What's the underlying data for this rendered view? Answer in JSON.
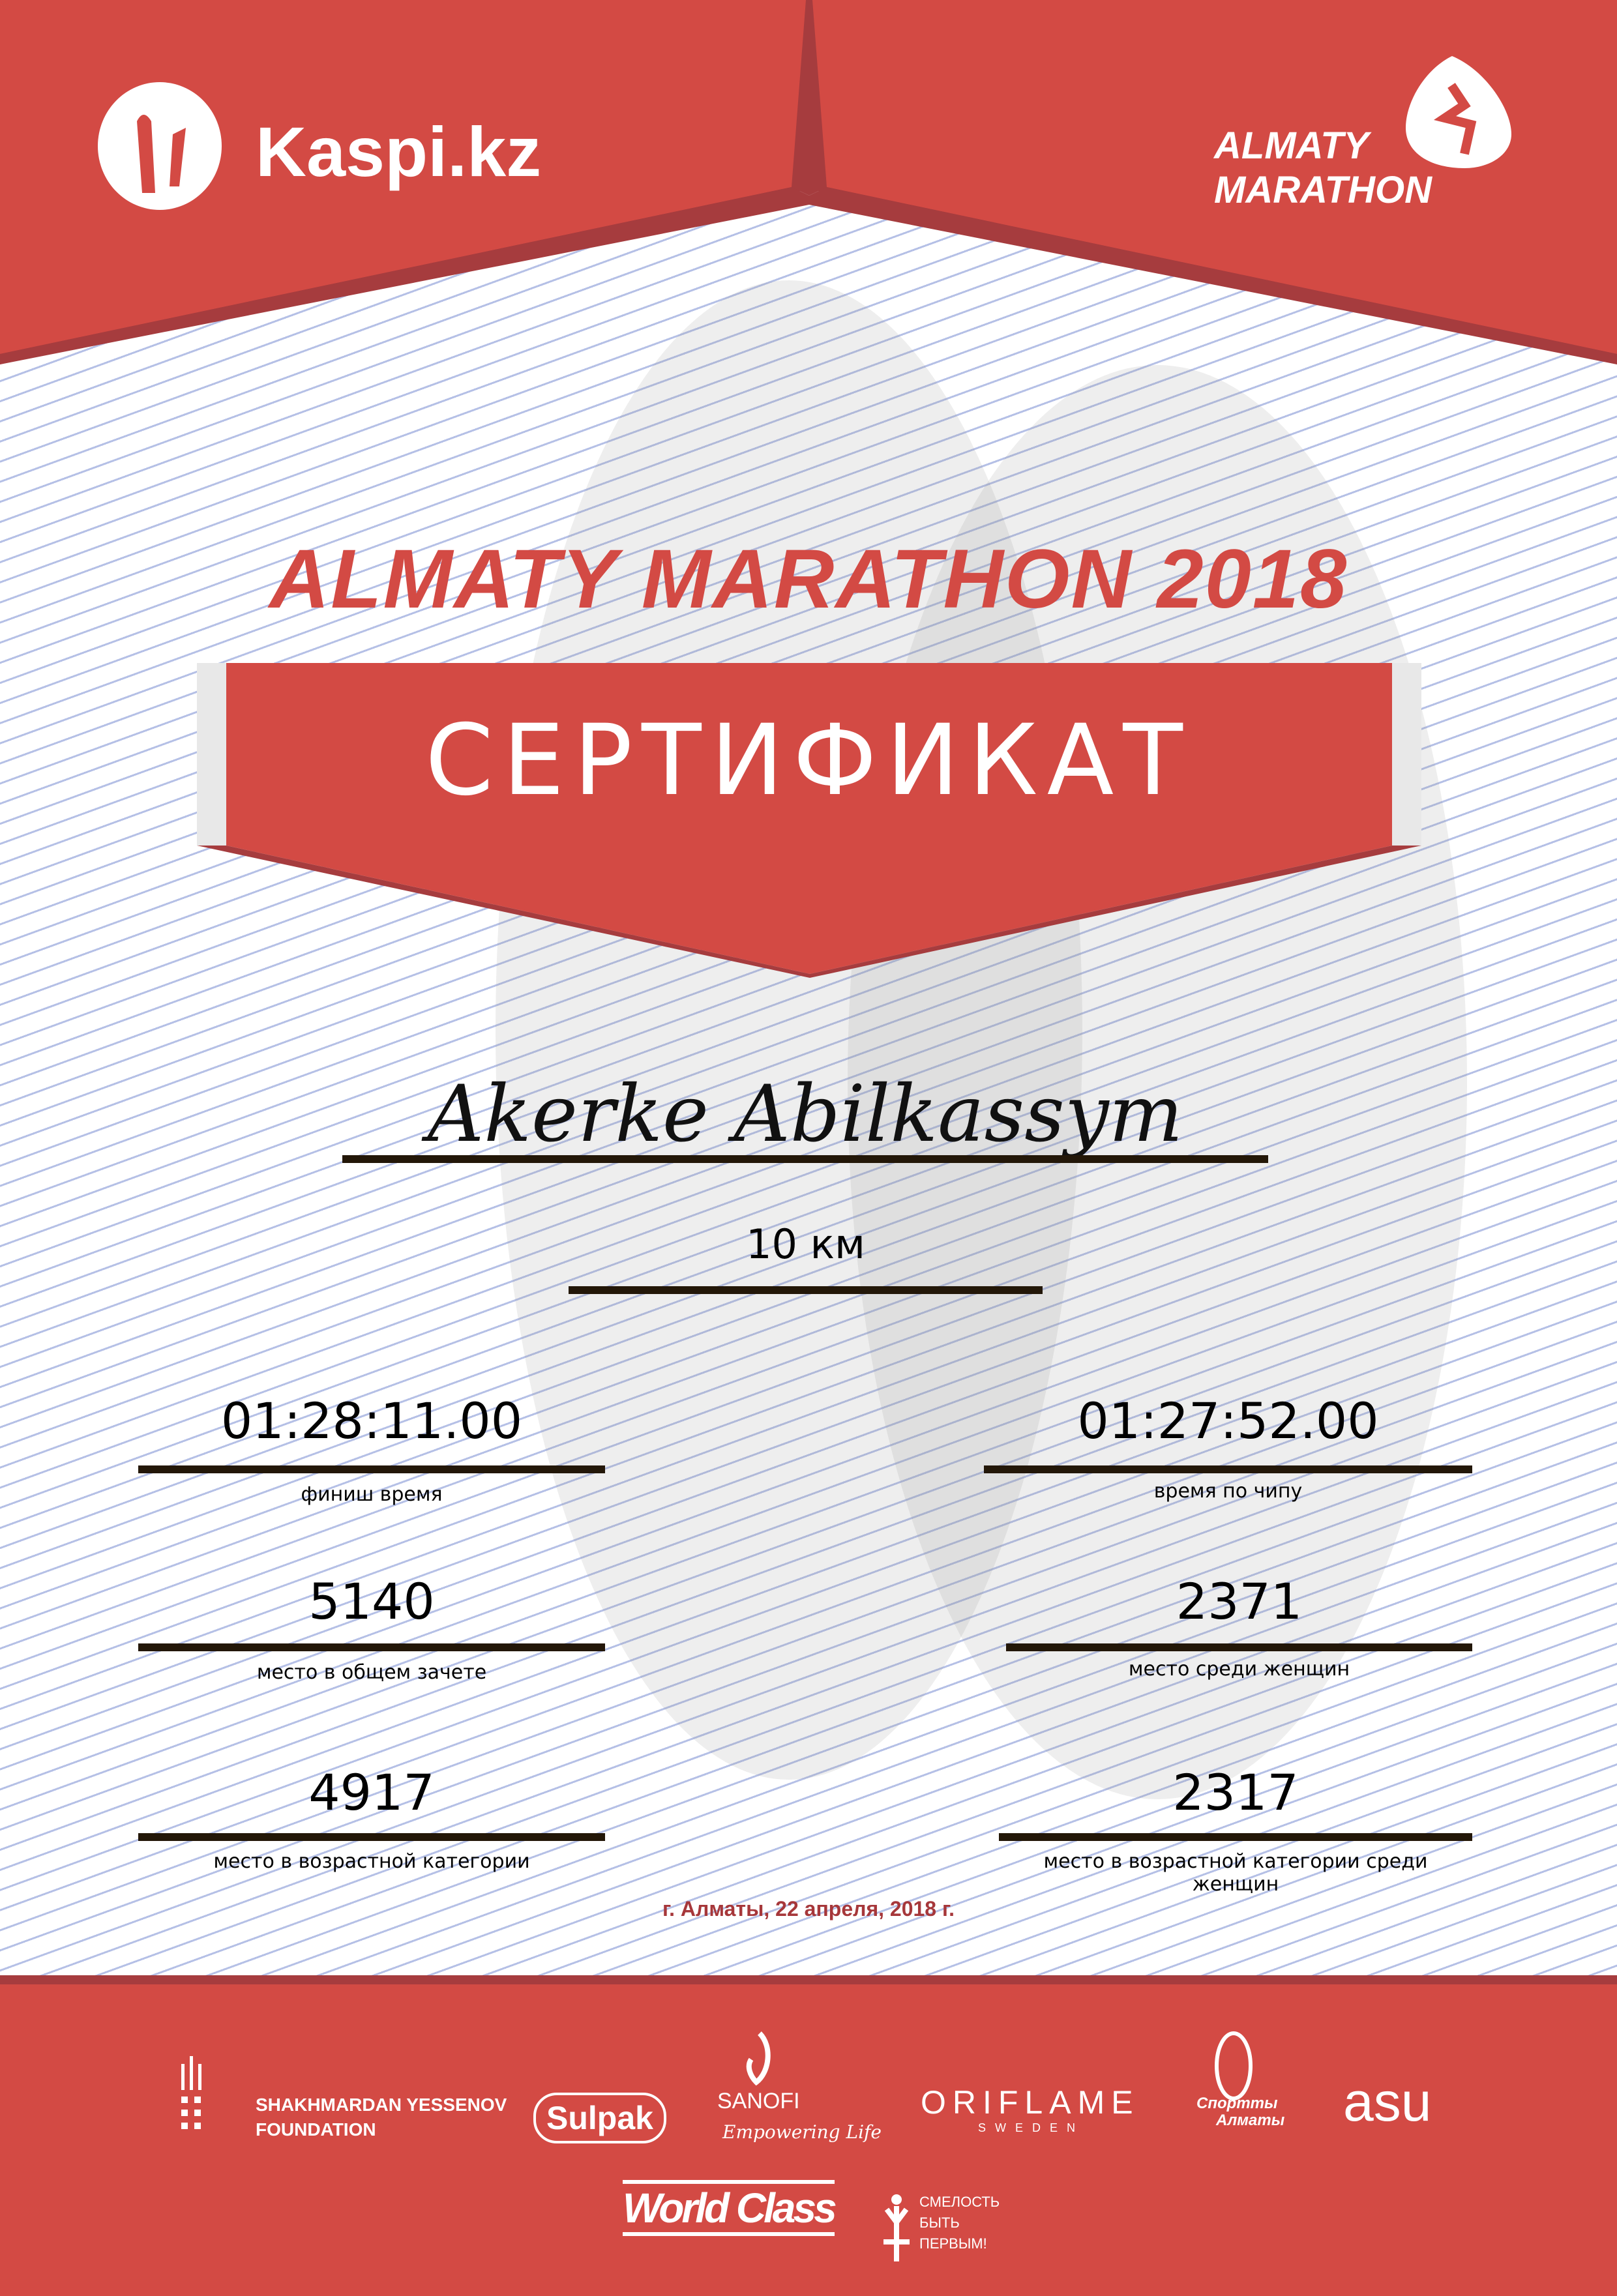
{
  "colors": {
    "brand_red": "#d34a44",
    "dark_red": "#a63c3e",
    "line_color": "#231708",
    "date_color": "#a6373a"
  },
  "header": {
    "left_logo": "Kaspi.kz",
    "right_logo_line1": "ALMATY",
    "right_logo_line2": "MARATHON"
  },
  "title": "ALMATY MARATHON 2018",
  "certificate_label": "СЕРТИФИКАТ",
  "participant_name": "Akerke Abilkassym",
  "distance": "10 км",
  "results": {
    "finish_time": {
      "value": "01:28:11.00",
      "label": "финиш время"
    },
    "chip_time": {
      "value": "01:27:52.00",
      "label": "время по чипу"
    },
    "overall_place": {
      "value": "5140",
      "label": "место в общем зачете"
    },
    "women_place": {
      "value": "2371",
      "label": "место среди женщин"
    },
    "age_place": {
      "value": "4917",
      "label": "место в возрастной категории"
    },
    "age_women_place": {
      "value": "2317",
      "label": "место в возрастной категории среди женщин"
    }
  },
  "date_place": "г. Алматы, 22 апреля, 2018 г.",
  "sponsors": {
    "yessenov_1": "SHAKHMARDAN YESSENOV",
    "yessenov_2": "FOUNDATION",
    "sulpak": "Sulpak",
    "sanofi": "SANOFI",
    "sanofi_tag": "Empowering Life",
    "oriflame": "ORIFLAME",
    "oriflame_sub": "SWEDEN",
    "sport_almaty_1": "Спортты",
    "sport_almaty_2": "Алматы",
    "asu": "asu",
    "worldclass": "World Class",
    "fund_1": "СМЕЛОСТЬ",
    "fund_2": "БЫТЬ",
    "fund_3": "ПЕРВЫМ!"
  }
}
